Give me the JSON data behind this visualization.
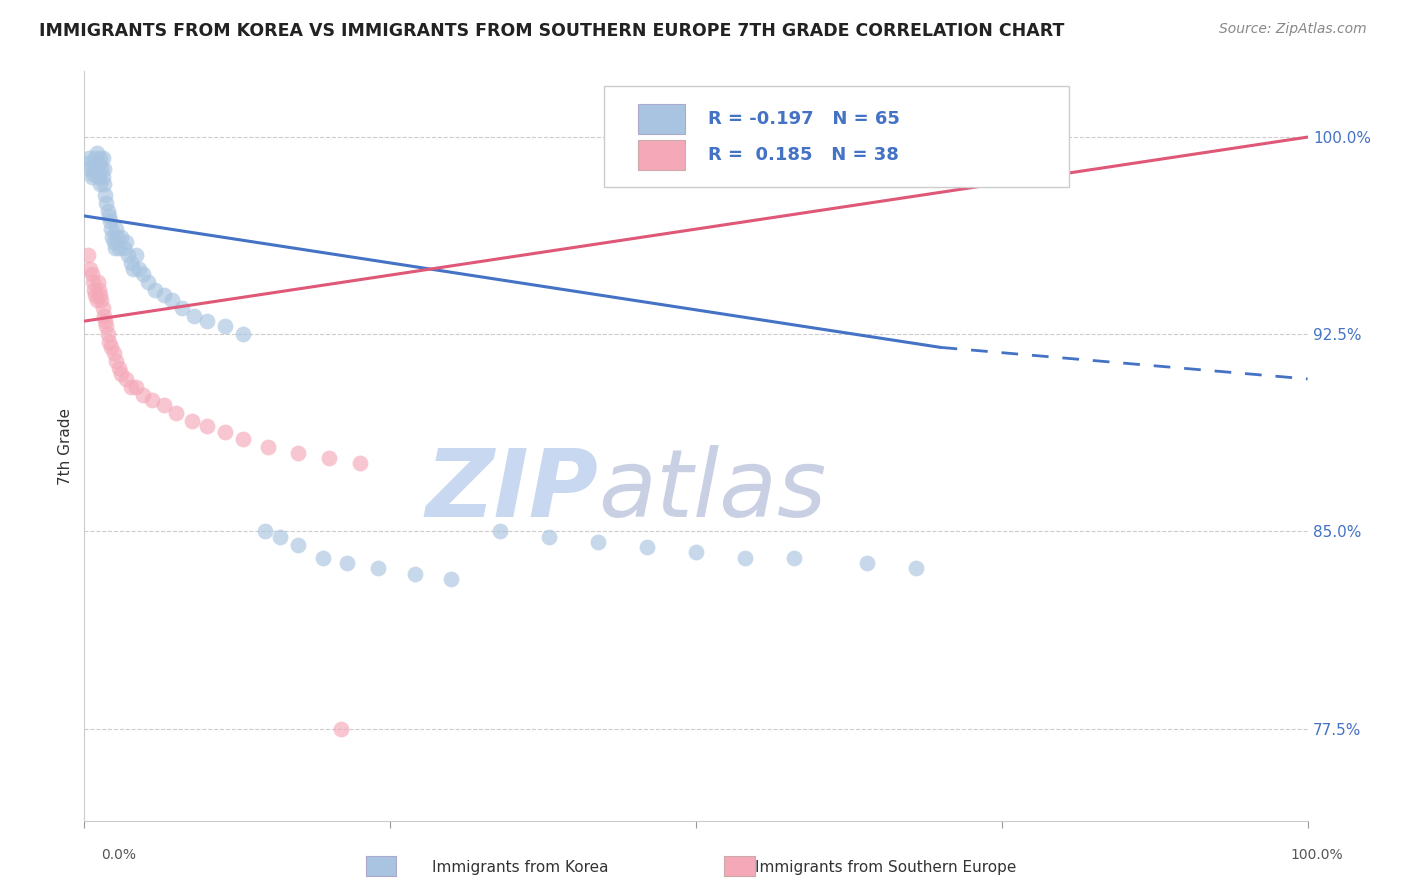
{
  "title": "IMMIGRANTS FROM KOREA VS IMMIGRANTS FROM SOUTHERN EUROPE 7TH GRADE CORRELATION CHART",
  "source": "Source: ZipAtlas.com",
  "xlabel_bottom_left": "0.0%",
  "xlabel_bottom_right": "100.0%",
  "xlabel_bottom_center": [
    "Immigrants from Korea",
    "Immigrants from Southern Europe"
  ],
  "ylabel": "7th Grade",
  "ytick_labels": [
    "77.5%",
    "85.0%",
    "92.5%",
    "100.0%"
  ],
  "ytick_values": [
    0.775,
    0.85,
    0.925,
    1.0
  ],
  "xlim": [
    0.0,
    1.0
  ],
  "ylim": [
    0.74,
    1.025
  ],
  "korea_R": -0.197,
  "korea_N": 65,
  "southern_R": 0.185,
  "southern_N": 38,
  "korea_color": "#a8c4e0",
  "southern_color": "#f4a8b8",
  "korea_line_color": "#4472c4",
  "southern_line_color": "#e05878",
  "background_color": "#ffffff",
  "title_color": "#222222",
  "source_color": "#888888",
  "legend_R_color": "#4472c4",
  "watermark_zip_color": "#c8d8f0",
  "watermark_atlas_color": "#c0c8e0",
  "korea_line_start_y": 0.97,
  "korea_line_end_y": 0.92,
  "korea_line_solid_end_x": 0.7,
  "korea_line_dash_end_y": 0.908,
  "southern_line_start_y": 0.93,
  "southern_line_end_y": 1.0,
  "korea_x": [
    0.002,
    0.004,
    0.005,
    0.006,
    0.007,
    0.008,
    0.009,
    0.01,
    0.011,
    0.012,
    0.012,
    0.013,
    0.013,
    0.014,
    0.015,
    0.015,
    0.016,
    0.016,
    0.017,
    0.018,
    0.019,
    0.02,
    0.021,
    0.022,
    0.023,
    0.024,
    0.025,
    0.026,
    0.027,
    0.028,
    0.03,
    0.032,
    0.034,
    0.036,
    0.038,
    0.04,
    0.042,
    0.045,
    0.048,
    0.052,
    0.058,
    0.065,
    0.072,
    0.08,
    0.09,
    0.1,
    0.115,
    0.13,
    0.148,
    0.16,
    0.175,
    0.195,
    0.215,
    0.24,
    0.27,
    0.3,
    0.34,
    0.38,
    0.42,
    0.46,
    0.5,
    0.54,
    0.58,
    0.64,
    0.68
  ],
  "korea_y": [
    0.99,
    0.992,
    0.988,
    0.985,
    0.986,
    0.988,
    0.992,
    0.994,
    0.988,
    0.99,
    0.985,
    0.982,
    0.992,
    0.988,
    0.985,
    0.992,
    0.988,
    0.982,
    0.978,
    0.975,
    0.972,
    0.97,
    0.968,
    0.965,
    0.962,
    0.96,
    0.958,
    0.965,
    0.962,
    0.958,
    0.962,
    0.958,
    0.96,
    0.955,
    0.952,
    0.95,
    0.955,
    0.95,
    0.948,
    0.945,
    0.942,
    0.94,
    0.938,
    0.935,
    0.932,
    0.93,
    0.928,
    0.925,
    0.85,
    0.848,
    0.845,
    0.84,
    0.838,
    0.836,
    0.834,
    0.832,
    0.85,
    0.848,
    0.846,
    0.844,
    0.842,
    0.84,
    0.84,
    0.838,
    0.836
  ],
  "southern_x": [
    0.003,
    0.005,
    0.006,
    0.007,
    0.008,
    0.009,
    0.01,
    0.011,
    0.012,
    0.013,
    0.014,
    0.015,
    0.016,
    0.017,
    0.018,
    0.019,
    0.02,
    0.022,
    0.024,
    0.026,
    0.028,
    0.03,
    0.034,
    0.038,
    0.042,
    0.048,
    0.055,
    0.065,
    0.075,
    0.088,
    0.1,
    0.115,
    0.13,
    0.15,
    0.175,
    0.2,
    0.225,
    0.21
  ],
  "southern_y": [
    0.955,
    0.95,
    0.948,
    0.945,
    0.942,
    0.94,
    0.938,
    0.945,
    0.942,
    0.94,
    0.938,
    0.935,
    0.932,
    0.93,
    0.928,
    0.925,
    0.922,
    0.92,
    0.918,
    0.915,
    0.912,
    0.91,
    0.908,
    0.905,
    0.905,
    0.902,
    0.9,
    0.898,
    0.895,
    0.892,
    0.89,
    0.888,
    0.885,
    0.882,
    0.88,
    0.878,
    0.876,
    0.775
  ]
}
